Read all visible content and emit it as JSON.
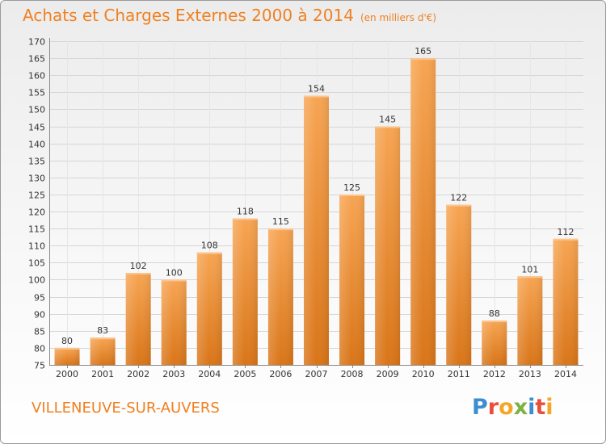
{
  "header": {
    "title": "Achats et Charges Externes 2000 à 2014",
    "unit": "(en milliers d'€)"
  },
  "footer": {
    "commune": "VILLENEUVE-SUR-AUVERS",
    "logo_letters": [
      "P",
      "r",
      "o",
      "x",
      "i",
      "t",
      "i"
    ],
    "logo_colors": [
      "#3b8fd0",
      "#e94e3c",
      "#f5a623",
      "#7cb342",
      "#3b8fd0",
      "#e94e3c",
      "#f5a623"
    ]
  },
  "colors": {
    "bar_light": "#f7a553",
    "bar_dark": "#d97518",
    "accent": "#f08020"
  },
  "chart_data": {
    "type": "bar",
    "title": "Achats et Charges Externes 2000 à 2014",
    "subtitle": "(en milliers d'€)",
    "xlabel": "",
    "ylabel": "",
    "categories": [
      "2000",
      "2001",
      "2002",
      "2003",
      "2004",
      "2005",
      "2006",
      "2007",
      "2008",
      "2009",
      "2010",
      "2011",
      "2012",
      "2013",
      "2014"
    ],
    "values": [
      80,
      83,
      102,
      100,
      108,
      118,
      115,
      154,
      125,
      145,
      165,
      122,
      88,
      101,
      112
    ],
    "ylim": [
      75,
      170
    ],
    "yticks": [
      75,
      80,
      85,
      90,
      95,
      100,
      105,
      110,
      115,
      120,
      125,
      130,
      135,
      140,
      145,
      150,
      155,
      160,
      165,
      170
    ],
    "grid": true
  }
}
